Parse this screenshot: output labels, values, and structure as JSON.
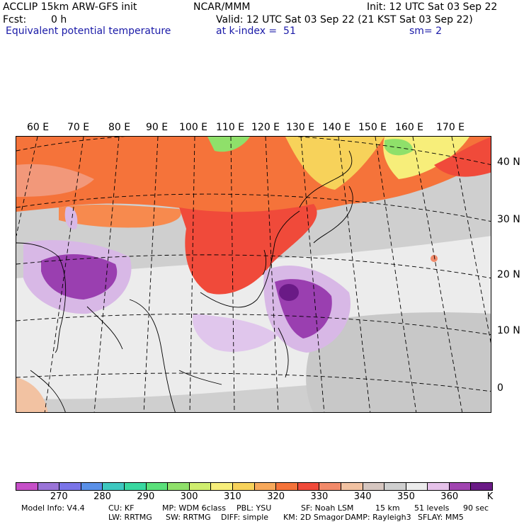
{
  "header": {
    "title": "ACCLIP 15km ARW-GFS init",
    "org": "NCAR/MMM",
    "init": "Init: 12 UTC Sat 03 Sep 22",
    "fcst_label": "Fcst:",
    "fcst_value": "0 h",
    "valid": "Valid: 12 UTC Sat 03 Sep 22 (21 KST Sat 03 Sep 22)",
    "field": "Equivalent potential temperature",
    "level": "at k-index =  51",
    "smooth": "sm= 2"
  },
  "map": {
    "lon_labels": [
      "60 E",
      "70 E",
      "80 E",
      "90 E",
      "100 E",
      "110 E",
      "120 E",
      "130 E",
      "140 E",
      "150 E",
      "160 E",
      "170 E"
    ],
    "lat_labels": [
      "40 N",
      "30 N",
      "20 N",
      "10 N",
      "0"
    ],
    "region_colors": {
      "north_band": "#f5733a",
      "central_red": "#f04a3a",
      "tibet_orange": "#f78a4e",
      "yellow_patch": "#f7d25a",
      "green_patch": "#8fe06a",
      "grey_ocean": "#cfcfcf",
      "light_grey": "#ececec",
      "lavender": "#d8b8e6",
      "purple": "#9a3fb0",
      "dark_purple": "#6a1a86",
      "peach": "#f2c2a2"
    }
  },
  "colorbar": {
    "colors": [
      "#c64fc8",
      "#9a74d8",
      "#7a74e8",
      "#5a90e8",
      "#3ec8c0",
      "#38d8a0",
      "#5ae07a",
      "#8fe06a",
      "#cfee6e",
      "#f7ee7a",
      "#f7d25a",
      "#f7a85a",
      "#f5733a",
      "#f04a3a",
      "#f28a6a",
      "#f2c2a2",
      "#d6c6c0",
      "#cfcfcf",
      "#ececec",
      "#e6c2ea",
      "#a044b0",
      "#6a1a86"
    ],
    "tick_labels": [
      "270",
      "280",
      "290",
      "300",
      "310",
      "320",
      "330",
      "340",
      "350",
      "360"
    ],
    "unit": "K"
  },
  "footer": {
    "line1": [
      "Model Info: V4.4",
      "CU: KF",
      "MP: WDM 6class",
      "PBL: YSU",
      "SF: Noah LSM",
      "15 km",
      "51 levels",
      "90 sec"
    ],
    "line2": [
      "LW: RRTMG",
      "SW: RRTMG",
      "DIFF: simple",
      "KM: 2D Smagor",
      "DAMP: Rayleigh3",
      "SFLAY: MM5"
    ]
  }
}
